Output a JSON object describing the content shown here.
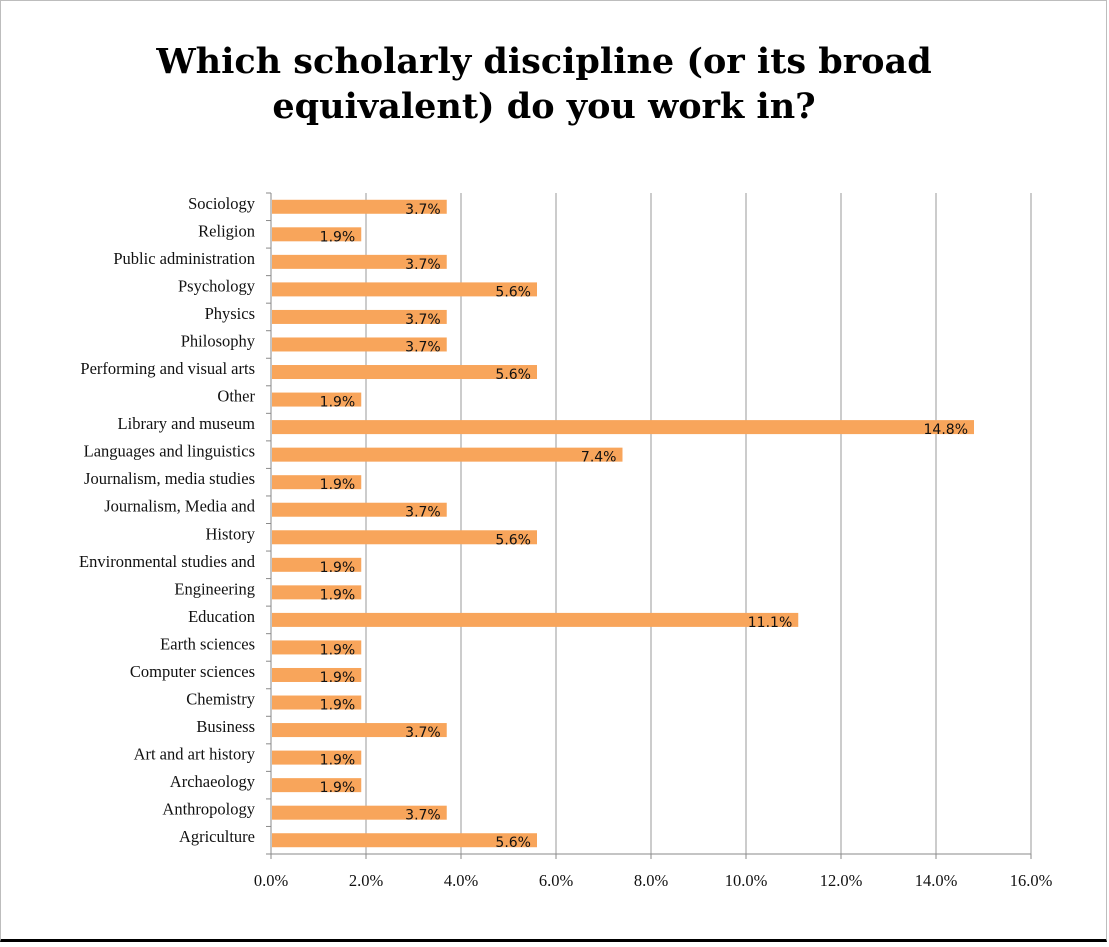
{
  "chart_data": {
    "type": "bar",
    "orientation": "horizontal",
    "title": "Which scholarly discipline (or its broad equivalent) do you work in?",
    "title_lines": [
      "Which scholarly discipline (or its broad",
      "equivalent) do you work in?"
    ],
    "categories": [
      "Sociology",
      "Religion",
      "Public administration",
      "Psychology",
      "Physics",
      "Philosophy",
      "Performing and visual arts",
      "Other",
      "Library and museum",
      "Languages and linguistics",
      "Journalism, media studies",
      "Journalism, Media and",
      "History",
      "Environmental studies and",
      "Engineering",
      "Education",
      "Earth sciences",
      "Computer sciences",
      "Chemistry",
      "Business",
      "Art and art history",
      "Archaeology",
      "Anthropology",
      "Agriculture"
    ],
    "values": [
      3.7,
      1.9,
      3.7,
      5.6,
      3.7,
      3.7,
      5.6,
      1.9,
      14.8,
      7.4,
      1.9,
      3.7,
      5.6,
      1.9,
      1.9,
      11.1,
      1.9,
      1.9,
      1.9,
      3.7,
      1.9,
      1.9,
      3.7,
      5.6
    ],
    "data_labels": [
      "3.7%",
      "1.9%",
      "3.7%",
      "5.6%",
      "3.7%",
      "3.7%",
      "5.6%",
      "1.9%",
      "14.8%",
      "7.4%",
      "1.9%",
      "3.7%",
      "5.6%",
      "1.9%",
      "1.9%",
      "11.1%",
      "1.9%",
      "1.9%",
      "1.9%",
      "3.7%",
      "1.9%",
      "1.9%",
      "3.7%",
      "5.6%"
    ],
    "xlim": [
      0,
      16
    ],
    "x_ticks": [
      0,
      2,
      4,
      6,
      8,
      10,
      12,
      14,
      16
    ],
    "x_tick_labels": [
      "0.0%",
      "2.0%",
      "4.0%",
      "6.0%",
      "8.0%",
      "10.0%",
      "12.0%",
      "14.0%",
      "16.0%"
    ],
    "grid": true,
    "bar_color": "#F8A55B",
    "grid_color": "#9a9a9a"
  }
}
